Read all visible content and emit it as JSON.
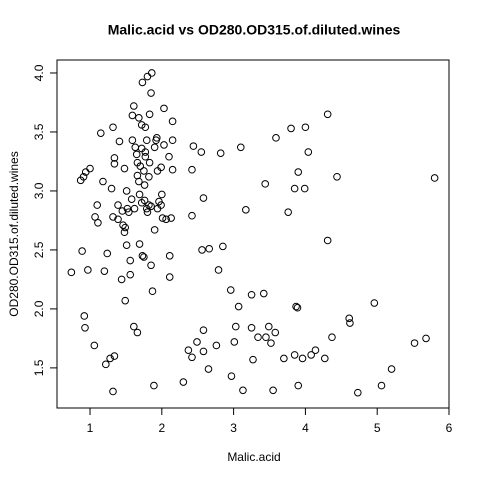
{
  "chart_data": {
    "type": "scatter",
    "title": "Malic.acid vs OD280.OD315.of.diluted.wines",
    "x_label": "Malic.acid",
    "y_label": "OD280.OD315.of.diluted.wines",
    "color": "#000000",
    "xlim": [
      0.54,
      6.0
    ],
    "ylim": [
      1.16,
      4.11
    ],
    "xticks": [
      1,
      2,
      3,
      4,
      5,
      6
    ],
    "yticks": [
      1.5,
      {
        "value": 2,
        "label": "2.0"
      },
      2.5,
      {
        "value": 3,
        "label": "3.0"
      },
      3.5,
      {
        "value": 4,
        "label": "4.0"
      }
    ],
    "x": [
      0.74,
      0.89,
      0.87,
      0.91,
      0.94,
      1.0,
      0.92,
      0.93,
      0.97,
      1.06,
      1.07,
      1.1,
      1.11,
      1.15,
      1.18,
      1.2,
      1.24,
      1.22,
      1.28,
      1.34,
      1.32,
      1.32,
      1.3,
      1.34,
      1.34,
      1.32,
      1.39,
      1.39,
      1.41,
      1.44,
      1.45,
      1.46,
      1.48,
      1.49,
      1.48,
      1.49,
      1.51,
      1.51,
      1.52,
      1.54,
      1.56,
      1.56,
      1.58,
      1.59,
      1.59,
      1.61,
      1.61,
      1.62,
      1.63,
      1.65,
      1.66,
      1.66,
      1.66,
      1.68,
      1.68,
      1.69,
      1.69,
      1.7,
      1.72,
      1.72,
      1.72,
      1.73,
      1.73,
      1.75,
      1.75,
      1.76,
      1.76,
      1.77,
      1.77,
      1.77,
      1.79,
      1.79,
      1.8,
      1.8,
      1.82,
      1.82,
      1.83,
      1.83,
      1.85,
      1.85,
      1.85,
      1.86,
      1.87,
      1.89,
      1.9,
      1.9,
      1.92,
      1.93,
      1.94,
      1.94,
      1.96,
      1.99,
      1.99,
      2.0,
      2.01,
      2.03,
      2.03,
      2.06,
      2.1,
      2.13,
      2.11,
      2.11,
      2.15,
      2.15,
      2.15,
      2.3,
      2.37,
      2.44,
      2.42,
      2.42,
      2.42,
      2.49,
      2.55,
      2.56,
      2.58,
      2.58,
      2.58,
      2.65,
      2.66,
      2.76,
      2.79,
      2.82,
      2.85,
      2.96,
      2.97,
      3.01,
      3.03,
      3.07,
      3.1,
      3.13,
      3.17,
      3.25,
      3.25,
      3.27,
      3.34,
      3.42,
      3.44,
      3.45,
      3.49,
      3.52,
      3.55,
      3.58,
      3.59,
      3.7,
      3.76,
      3.8,
      3.85,
      3.85,
      3.87,
      3.89,
      3.9,
      3.9,
      3.96,
      3.99,
      4.0,
      4.04,
      4.08,
      4.14,
      4.27,
      4.31,
      4.31,
      4.37,
      4.44,
      4.61,
      4.62,
      4.73,
      4.96,
      5.06,
      5.2,
      5.52,
      5.68,
      5.8
    ],
    "values": [
      2.31,
      2.49,
      3.09,
      3.12,
      3.16,
      3.19,
      1.94,
      1.84,
      2.33,
      1.69,
      2.78,
      2.88,
      2.73,
      3.49,
      3.08,
      2.32,
      2.47,
      1.53,
      1.58,
      1.6,
      1.3,
      3.54,
      3.02,
      3.23,
      3.28,
      2.78,
      2.76,
      2.88,
      3.42,
      2.25,
      2.83,
      2.71,
      3.19,
      2.69,
      2.65,
      2.07,
      2.54,
      3.0,
      2.85,
      2.82,
      2.41,
      2.29,
      2.93,
      3.64,
      3.43,
      3.72,
      1.85,
      2.85,
      3.37,
      3.31,
      3.24,
      1.8,
      3.13,
      3.62,
      3.08,
      2.55,
      2.97,
      3.21,
      3.56,
      3.36,
      2.9,
      3.92,
      2.45,
      2.44,
      3.17,
      3.05,
      2.92,
      3.33,
      3.54,
      3.29,
      3.43,
      2.85,
      2.82,
      3.97,
      3.12,
      2.88,
      3.24,
      3.65,
      2.87,
      3.83,
      2.37,
      4.0,
      2.15,
      1.35,
      2.67,
      3.37,
      3.43,
      3.45,
      3.17,
      2.85,
      2.91,
      2.88,
      3.2,
      2.97,
      2.77,
      3.7,
      3.39,
      2.76,
      3.29,
      2.77,
      2.45,
      2.27,
      3.59,
      3.18,
      3.43,
      1.38,
      1.65,
      3.38,
      3.18,
      2.79,
      1.59,
      1.72,
      3.33,
      2.5,
      2.94,
      1.82,
      1.64,
      1.49,
      2.51,
      1.69,
      2.33,
      3.32,
      2.53,
      2.16,
      1.43,
      1.72,
      1.85,
      2.02,
      3.37,
      1.31,
      2.84,
      2.12,
      1.84,
      1.57,
      1.76,
      2.13,
      3.06,
      1.76,
      1.85,
      1.71,
      1.31,
      1.8,
      3.45,
      1.58,
      2.82,
      3.53,
      3.02,
      1.61,
      2.02,
      2.01,
      3.16,
      1.35,
      1.58,
      3.02,
      3.54,
      3.33,
      1.61,
      1.65,
      1.58,
      3.65,
      2.58,
      1.76,
      3.12,
      1.92,
      1.88,
      1.29,
      2.05,
      1.35,
      1.49,
      1.71,
      1.75,
      3.11
    ]
  }
}
